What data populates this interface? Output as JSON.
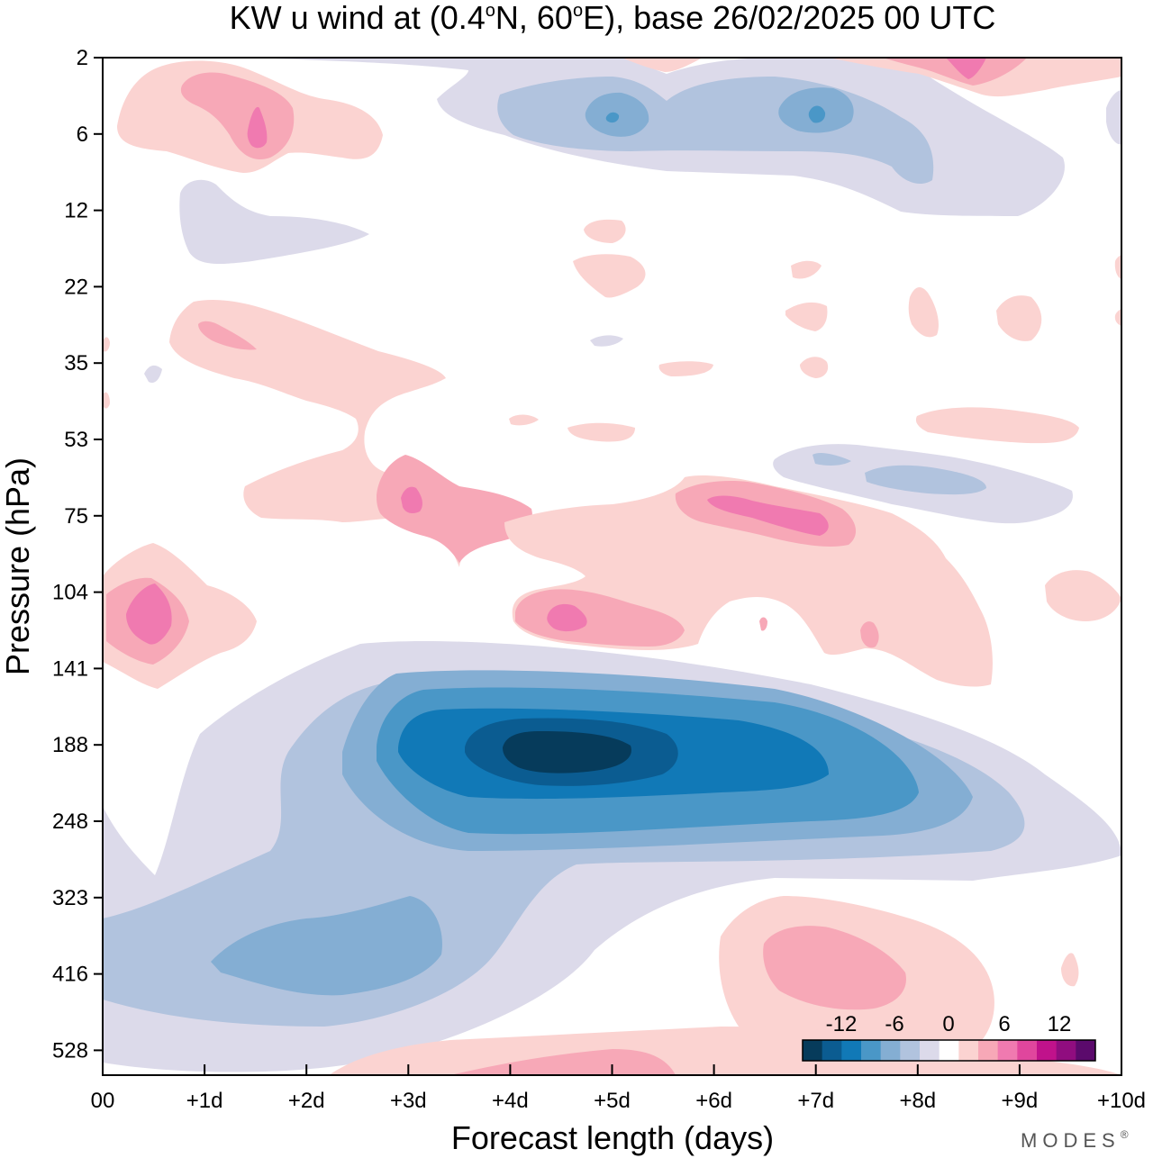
{
  "chart_data": {
    "type": "heatmap",
    "title": {
      "prefix": "KW u wind at (0.4",
      "deg1": "o",
      "mid": "N, 60",
      "deg2": "o",
      "suffix": "E),  base 26/02/2025  00 UTC"
    },
    "xlabel": "Forecast length (days)",
    "ylabel": "Pressure (hPa)",
    "x_ticks": [
      "00",
      "+1d",
      "+2d",
      "+3d",
      "+4d",
      "+5d",
      "+6d",
      "+7d",
      "+8d",
      "+9d",
      "+10d"
    ],
    "x_range_days": [
      0,
      10
    ],
    "y_ticks": [
      "2",
      "6",
      "12",
      "22",
      "35",
      "53",
      "75",
      "104",
      "141",
      "188",
      "248",
      "323",
      "416",
      "528"
    ],
    "y_scale": "pressure levels, top 2 hPa, bottom ~600 hPa",
    "grid": false,
    "colorbar": {
      "placement": "bottom-right",
      "tick_labels": [
        "-12",
        "-6",
        "0",
        "6",
        "12"
      ],
      "levels": [
        -15,
        -13.5,
        -12,
        -10.5,
        -9,
        -7.5,
        -6,
        -4.5,
        -3,
        -1.5,
        1.5,
        3,
        4.5,
        6,
        7.5,
        9,
        10.5,
        12,
        13.5
      ],
      "colors": [
        "#063b5b",
        "#0b5c91",
        "#1179b7",
        "#4a97c7",
        "#84aed3",
        "#b1c3de",
        "#dcdaea",
        "#ffffff",
        "#fbd3d1",
        "#f7a8b7",
        "#f07ab0",
        "#e0469d",
        "#c0128b",
        "#900d7f",
        "#5b0a6c"
      ]
    },
    "features": [
      {
        "sign": "negative",
        "peak_ms": -13.5,
        "center_day": 4.5,
        "center_hPa": 188,
        "desc": "main easterly core"
      },
      {
        "sign": "negative",
        "peak_ms": -7.5,
        "center_day": 1.5,
        "center_hPa": 416
      },
      {
        "sign": "negative",
        "peak_ms": -6,
        "center_day": 5.0,
        "center_hPa": 6
      },
      {
        "sign": "negative",
        "peak_ms": -6,
        "center_day": 7.0,
        "center_hPa": 6
      },
      {
        "sign": "negative",
        "peak_ms": -3,
        "center_day": 7.5,
        "center_hPa": 63
      },
      {
        "sign": "positive",
        "peak_ms": 6,
        "center_day": 0.5,
        "center_hPa": 104
      },
      {
        "sign": "positive",
        "peak_ms": 6,
        "center_day": 1.5,
        "center_hPa": 6
      },
      {
        "sign": "positive",
        "peak_ms": 6,
        "center_day": 6.5,
        "center_hPa": 75
      },
      {
        "sign": "positive",
        "peak_ms": 6,
        "center_day": 4.5,
        "center_hPa": 110
      },
      {
        "sign": "positive",
        "peak_ms": 6,
        "center_day": 3.0,
        "center_hPa": 75
      },
      {
        "sign": "positive",
        "peak_ms": 4.5,
        "center_day": 7.0,
        "center_hPa": 416
      },
      {
        "sign": "positive",
        "peak_ms": 6,
        "center_day": 8.5,
        "center_hPa": 2
      }
    ]
  },
  "brand": {
    "text": "MODES",
    "mark": "®"
  },
  "colors": {
    "n1": "#dcdaea",
    "n2": "#b1c3de",
    "n3": "#84aed3",
    "n4": "#4a97c7",
    "n5": "#1179b7",
    "n6": "#0b5c91",
    "n7": "#063b5b",
    "p1": "#fbd3d1",
    "p2": "#f7a8b7",
    "p3": "#f07ab0",
    "p4": "#e0469d"
  }
}
